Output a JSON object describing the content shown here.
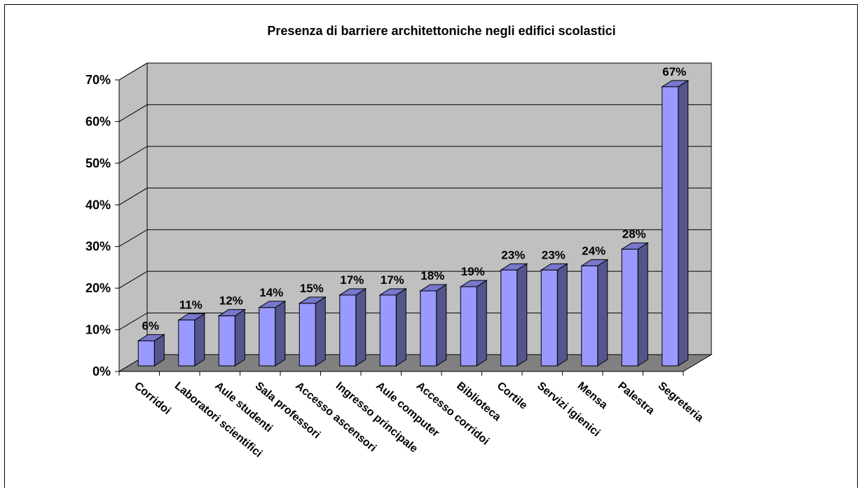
{
  "chart_data": {
    "type": "bar",
    "title": "Presenza di barriere architettoniche negli edifici scolastici",
    "categories": [
      "Corridoi",
      "Laboratori scientifici",
      "Aule studenti",
      "Sala professori",
      "Accesso ascensori",
      "Ingresso principale",
      "Aule computer",
      "Accesso corridoi",
      "Biblioteca",
      "Cortile",
      "Servizi igienici",
      "Mensa",
      "Palestra",
      "Segreteria"
    ],
    "values": [
      6,
      11,
      12,
      14,
      15,
      17,
      17,
      18,
      19,
      23,
      23,
      24,
      28,
      67
    ],
    "data_labels": [
      "6%",
      "11%",
      "12%",
      "14%",
      "15%",
      "17%",
      "17%",
      "18%",
      "19%",
      "23%",
      "23%",
      "24%",
      "28%",
      "67%"
    ],
    "yticks": [
      0,
      10,
      20,
      30,
      40,
      50,
      60,
      70
    ],
    "ytick_labels": [
      "0%",
      "10%",
      "20%",
      "30%",
      "40%",
      "50%",
      "60%",
      "70%"
    ],
    "ylim": [
      0,
      70
    ],
    "grid": true,
    "style": "3d",
    "colors": {
      "bar_front": "#9999ff",
      "bar_side": "#55558e",
      "bar_top": "#7777cc",
      "wall": "#c0c0c0",
      "floor": "#808080",
      "gridline": "#000000"
    }
  }
}
